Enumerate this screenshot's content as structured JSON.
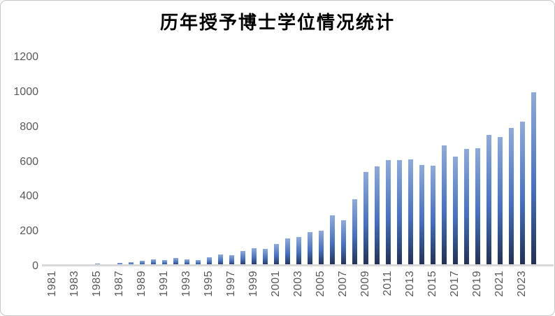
{
  "chart_data": {
    "type": "bar",
    "title": "历年授予博士学位情况统计",
    "xlabel": "",
    "ylabel": "",
    "x": [
      1981,
      1982,
      1983,
      1984,
      1985,
      1986,
      1987,
      1988,
      1989,
      1990,
      1991,
      1992,
      1993,
      1994,
      1995,
      1996,
      1997,
      1998,
      1999,
      2000,
      2001,
      2002,
      2003,
      2004,
      2005,
      2006,
      2007,
      2008,
      2009,
      2010,
      2011,
      2012,
      2013,
      2014,
      2015,
      2016,
      2017,
      2018,
      2019,
      2020,
      2021,
      2022,
      2023,
      2024
    ],
    "values": [
      1,
      2,
      3,
      8,
      12,
      7,
      15,
      19,
      27,
      36,
      31,
      45,
      38,
      31,
      48,
      66,
      60,
      83,
      102,
      97,
      123,
      156,
      163,
      193,
      201,
      288,
      262,
      382,
      537,
      569,
      608,
      605,
      609,
      578,
      572,
      690,
      627,
      672,
      674,
      752,
      738,
      789,
      826,
      997
    ],
    "x_tick_labels": [
      "1981",
      "1983",
      "1985",
      "1987",
      "1989",
      "1991",
      "1993",
      "1995",
      "1997",
      "1999",
      "2001",
      "2003",
      "2005",
      "2007",
      "2009",
      "2011",
      "2013",
      "2015",
      "2017",
      "2019",
      "2021",
      "2023"
    ],
    "y_tick_labels": [
      "0",
      "200",
      "400",
      "600",
      "800",
      "1000",
      "1200"
    ],
    "y_ticks": [
      0,
      200,
      400,
      600,
      800,
      1000,
      1200
    ],
    "ylim": [
      0,
      1200
    ],
    "grid": false,
    "legend": null,
    "colors": {
      "bar_gradient_top": "#8faadc",
      "bar_gradient_mid": "#4472c4",
      "bar_gradient_bottom": "#1f3055",
      "axis_line": "#d9d9d9",
      "tick_label": "#595959",
      "title": "#000000",
      "frame_border": "#c6c6c6",
      "background": "#ffffff"
    }
  }
}
